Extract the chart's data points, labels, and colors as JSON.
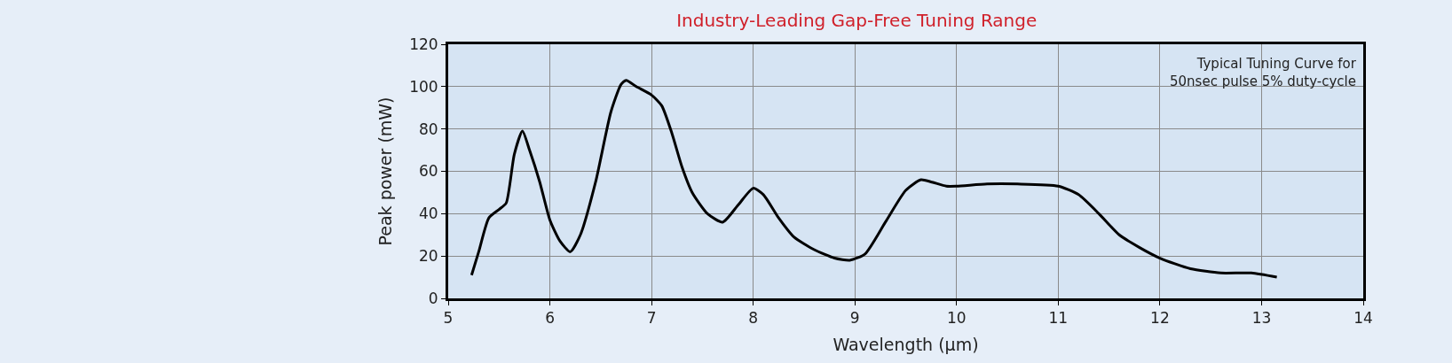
{
  "chart_data": {
    "type": "line",
    "title": "Industry-Leading Gap-Free Tuning Range",
    "xlabel": "Wavelength (µm)",
    "ylabel": "Peak power (mW)",
    "annotations": [
      "Typical Tuning Curve for\n50nsec pulse 5% duty-cycle"
    ],
    "xlim": [
      5,
      14
    ],
    "xticks": [
      5,
      6,
      7,
      8,
      9,
      10,
      11,
      12,
      13,
      14
    ],
    "ylim": [
      0,
      120
    ],
    "yticks": [
      0,
      20,
      40,
      60,
      80,
      100,
      120
    ],
    "grid": true,
    "marker": "none",
    "line_style": "solid",
    "series": [
      {
        "color": "#000000",
        "x": [
          5.23,
          5.3,
          5.4,
          5.5,
          5.57,
          5.65,
          5.73,
          5.8,
          5.9,
          6.0,
          6.1,
          6.2,
          6.3,
          6.45,
          6.6,
          6.7,
          6.75,
          6.85,
          7.0,
          7.1,
          7.2,
          7.3,
          7.4,
          7.55,
          7.7,
          7.85,
          8.0,
          8.1,
          8.25,
          8.4,
          8.6,
          8.8,
          8.95,
          9.1,
          9.3,
          9.5,
          9.65,
          9.75,
          9.9,
          10.0,
          10.3,
          10.6,
          11.0,
          11.2,
          11.4,
          11.6,
          11.8,
          12.0,
          12.3,
          12.6,
          12.9,
          13.15
        ],
        "values": [
          11,
          22,
          38,
          42,
          45,
          68,
          79,
          70,
          55,
          37,
          27,
          22,
          30,
          55,
          88,
          101,
          103,
          100,
          96,
          91,
          78,
          62,
          50,
          40,
          36,
          44,
          52,
          49,
          38,
          29,
          23,
          19,
          18,
          21,
          36,
          51,
          56,
          55,
          53,
          53,
          54,
          54,
          53,
          49,
          40,
          30,
          24,
          19,
          14,
          12,
          12,
          10
        ]
      }
    ]
  }
}
